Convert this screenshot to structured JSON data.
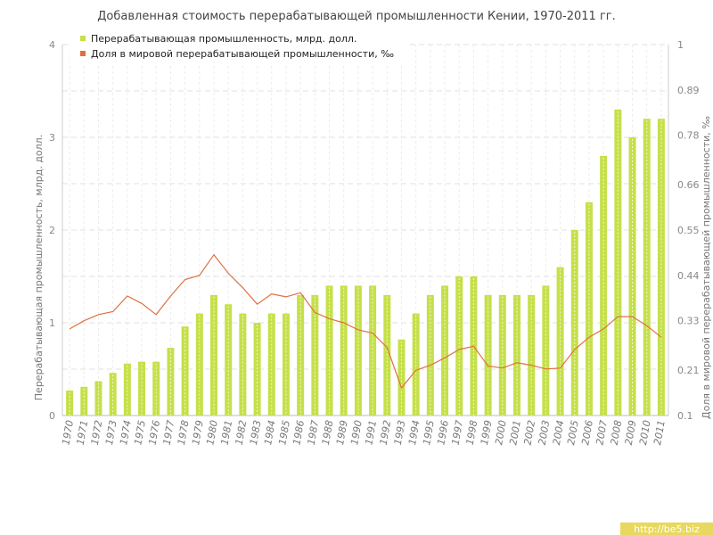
{
  "chart_data": {
    "type": "bar",
    "title": "Добавленная стоимость перерабатывающей промышленности Кении, 1970-2011 гг.",
    "xlabel": "",
    "ylabel": "Перерабатывающая промышленность, млрд. долл.",
    "ylabel_right": "Доля в мировой перерабатывающей промышленности, ‰",
    "ylim": [
      0,
      4
    ],
    "ylim_right": [
      0.1,
      1
    ],
    "yticks": [
      "0",
      "1",
      "2",
      "3",
      "4"
    ],
    "yticks_right": [
      "0.1",
      "0.21",
      "0.33",
      "0.44",
      "0.55",
      "0.66",
      "0.78",
      "0.89",
      "1"
    ],
    "grid": true,
    "legend_position": "top-left",
    "categories": [
      "1970",
      "1971",
      "1972",
      "1973",
      "1974",
      "1975",
      "1976",
      "1977",
      "1978",
      "1979",
      "1980",
      "1981",
      "1982",
      "1983",
      "1984",
      "1985",
      "1986",
      "1987",
      "1988",
      "1989",
      "1990",
      "1991",
      "1992",
      "1993",
      "1994",
      "1995",
      "1996",
      "1997",
      "1998",
      "1999",
      "2000",
      "2001",
      "2002",
      "2003",
      "2004",
      "2005",
      "2006",
      "2007",
      "2008",
      "2009",
      "2010",
      "2011"
    ],
    "series": [
      {
        "name": "Перерабатывающая промышленность, млрд. долл.",
        "type": "bar",
        "axis": "left",
        "color": "#c5e04a",
        "values": [
          0.27,
          0.31,
          0.37,
          0.46,
          0.56,
          0.58,
          0.58,
          0.73,
          0.96,
          1.1,
          1.3,
          1.2,
          1.1,
          1.0,
          1.1,
          1.1,
          1.3,
          1.3,
          1.4,
          1.4,
          1.4,
          1.4,
          1.3,
          0.82,
          1.1,
          1.3,
          1.4,
          1.5,
          1.5,
          1.3,
          1.3,
          1.3,
          1.3,
          1.4,
          1.6,
          2.0,
          2.3,
          2.8,
          3.3,
          3.0,
          3.2,
          3.2
        ]
      },
      {
        "name": "Доля в мировой перерабатывающей промышленности, ‰",
        "type": "line",
        "axis": "right",
        "color": "#e07040",
        "values": [
          0.31,
          0.33,
          0.345,
          0.352,
          0.39,
          0.372,
          0.345,
          0.39,
          0.43,
          0.44,
          0.49,
          0.445,
          0.41,
          0.37,
          0.395,
          0.388,
          0.398,
          0.35,
          0.335,
          0.325,
          0.308,
          0.3,
          0.265,
          0.167,
          0.21,
          0.222,
          0.24,
          0.26,
          0.268,
          0.22,
          0.215,
          0.228,
          0.222,
          0.213,
          0.215,
          0.26,
          0.29,
          0.31,
          0.34,
          0.34,
          0.318,
          0.29
        ]
      }
    ]
  },
  "watermark": "http://be5.biz"
}
